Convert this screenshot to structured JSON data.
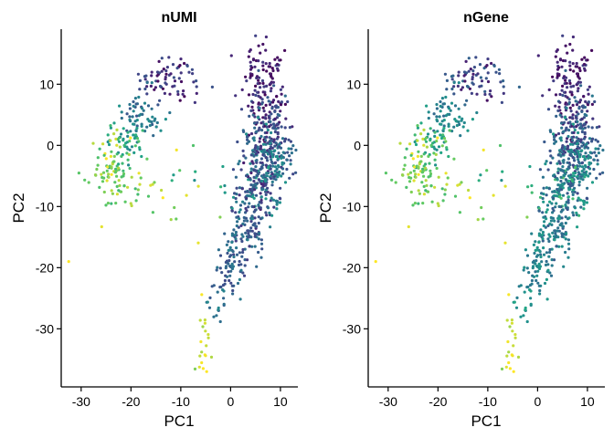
{
  "chart_data": [
    {
      "type": "scatter",
      "title": "nUMI",
      "xlabel": "PC1",
      "ylabel": "PC2",
      "xlim": [
        -34,
        13.5
      ],
      "ylim": [
        -39.5,
        19
      ],
      "xticks": [
        -30,
        -20,
        -10,
        0,
        10
      ],
      "yticks": [
        10,
        0,
        -10,
        -20,
        -30
      ],
      "xtick_labels": [
        "-30",
        "-20",
        "-10",
        "0",
        "10"
      ],
      "ytick_labels": [
        "10",
        "0",
        "-10",
        "-20",
        "-30"
      ],
      "colormap": "viridis",
      "grid": false,
      "legend": "none",
      "clusters": [
        {
          "cx": -12,
          "cy": 11,
          "sx": 3,
          "sy": 2,
          "n": 70,
          "cmin": 0.0,
          "cmax": 0.35
        },
        {
          "cx": -18,
          "cy": 5,
          "sx": 2.5,
          "sy": 2.2,
          "n": 60,
          "cmin": 0.3,
          "cmax": 0.65
        },
        {
          "cx": -21,
          "cy": 1,
          "sx": 2.2,
          "sy": 2.0,
          "n": 50,
          "cmin": 0.55,
          "cmax": 0.85
        },
        {
          "cx": -23.5,
          "cy": -4,
          "sx": 2.0,
          "sy": 2.5,
          "n": 75,
          "cmin": 0.8,
          "cmax": 1.0
        },
        {
          "cx": -18,
          "cy": -7,
          "sx": 4.0,
          "sy": 3.0,
          "n": 25,
          "cmin": 0.85,
          "cmax": 1.0
        },
        {
          "cx": 6.5,
          "cy": 11,
          "sx": 2.2,
          "sy": 2.5,
          "n": 90,
          "cmin": 0.0,
          "cmax": 0.25
        },
        {
          "cx": 7.5,
          "cy": 4,
          "sx": 2.4,
          "sy": 3.0,
          "n": 140,
          "cmin": 0.0,
          "cmax": 0.45
        },
        {
          "cx": 7.5,
          "cy": -2,
          "sx": 2.6,
          "sy": 2.8,
          "n": 200,
          "cmin": 0.15,
          "cmax": 0.65
        },
        {
          "cx": 5.5,
          "cy": -7,
          "sx": 2.4,
          "sy": 2.5,
          "n": 130,
          "cmin": 0.1,
          "cmax": 0.7
        },
        {
          "cx": 3.0,
          "cy": -13,
          "sx": 2.0,
          "sy": 2.8,
          "n": 110,
          "cmin": 0.2,
          "cmax": 0.55
        },
        {
          "cx": 0.5,
          "cy": -20,
          "sx": 1.4,
          "sy": 2.5,
          "n": 60,
          "cmin": 0.25,
          "cmax": 0.55
        },
        {
          "cx": -2.5,
          "cy": -25,
          "sx": 1.0,
          "sy": 2.0,
          "n": 20,
          "cmin": 0.3,
          "cmax": 0.6
        },
        {
          "cx": -5.5,
          "cy": -31,
          "sx": 0.7,
          "sy": 3.2,
          "n": 18,
          "cmin": 0.9,
          "cmax": 1.0
        },
        {
          "cx": -8,
          "cy": -6,
          "sx": 5,
          "sy": 4,
          "n": 15,
          "cmin": 0.6,
          "cmax": 1.0
        }
      ],
      "extra_points": [
        {
          "x": -32.5,
          "y": -19,
          "c": 1.0
        },
        {
          "x": -4.8,
          "y": -37,
          "c": 1.0
        },
        {
          "x": -5.5,
          "y": -36.5,
          "c": 1.0
        }
      ]
    },
    {
      "type": "scatter",
      "title": "nGene",
      "xlabel": "PC1",
      "ylabel": "PC2",
      "xlim": [
        -34,
        13.5
      ],
      "ylim": [
        -39.5,
        19
      ],
      "xticks": [
        -30,
        -20,
        -10,
        0,
        10
      ],
      "yticks": [
        10,
        0,
        -10,
        -20,
        -30
      ],
      "xtick_labels": [
        "-30",
        "-20",
        "-10",
        "0",
        "10"
      ],
      "ytick_labels": [
        "10",
        "0",
        "-10",
        "-20",
        "-30"
      ],
      "colormap": "viridis",
      "grid": false,
      "legend": "none",
      "clusters": [
        {
          "cx": -12,
          "cy": 11,
          "sx": 3,
          "sy": 2,
          "n": 70,
          "cmin": 0.05,
          "cmax": 0.45
        },
        {
          "cx": -18,
          "cy": 5,
          "sx": 2.5,
          "sy": 2.2,
          "n": 60,
          "cmin": 0.4,
          "cmax": 0.7
        },
        {
          "cx": -21,
          "cy": 1,
          "sx": 2.2,
          "sy": 2.0,
          "n": 50,
          "cmin": 0.6,
          "cmax": 0.9
        },
        {
          "cx": -23.5,
          "cy": -4,
          "sx": 2.0,
          "sy": 2.5,
          "n": 75,
          "cmin": 0.8,
          "cmax": 1.0
        },
        {
          "cx": -18,
          "cy": -7,
          "sx": 4.0,
          "sy": 3.0,
          "n": 25,
          "cmin": 0.85,
          "cmax": 1.0
        },
        {
          "cx": 6.5,
          "cy": 11,
          "sx": 2.2,
          "sy": 2.5,
          "n": 90,
          "cmin": 0.0,
          "cmax": 0.25
        },
        {
          "cx": 7.5,
          "cy": 4,
          "sx": 2.4,
          "sy": 3.0,
          "n": 140,
          "cmin": 0.05,
          "cmax": 0.5
        },
        {
          "cx": 7.5,
          "cy": -2,
          "sx": 2.6,
          "sy": 2.8,
          "n": 200,
          "cmin": 0.2,
          "cmax": 0.7
        },
        {
          "cx": 5.5,
          "cy": -7,
          "sx": 2.4,
          "sy": 2.5,
          "n": 130,
          "cmin": 0.3,
          "cmax": 0.85
        },
        {
          "cx": 3.0,
          "cy": -13,
          "sx": 2.0,
          "sy": 2.8,
          "n": 110,
          "cmin": 0.35,
          "cmax": 0.7
        },
        {
          "cx": 0.5,
          "cy": -20,
          "sx": 1.4,
          "sy": 2.5,
          "n": 60,
          "cmin": 0.45,
          "cmax": 0.7
        },
        {
          "cx": -2.5,
          "cy": -25,
          "sx": 1.0,
          "sy": 2.0,
          "n": 20,
          "cmin": 0.5,
          "cmax": 0.75
        },
        {
          "cx": -5.5,
          "cy": -31,
          "sx": 0.7,
          "sy": 3.2,
          "n": 18,
          "cmin": 0.9,
          "cmax": 1.0
        },
        {
          "cx": -8,
          "cy": -6,
          "sx": 5,
          "sy": 4,
          "n": 15,
          "cmin": 0.6,
          "cmax": 1.0
        }
      ],
      "extra_points": [
        {
          "x": -32.5,
          "y": -19,
          "c": 1.0
        },
        {
          "x": -4.8,
          "y": -37,
          "c": 1.0
        },
        {
          "x": -5.5,
          "y": -36.5,
          "c": 1.0
        }
      ]
    }
  ]
}
